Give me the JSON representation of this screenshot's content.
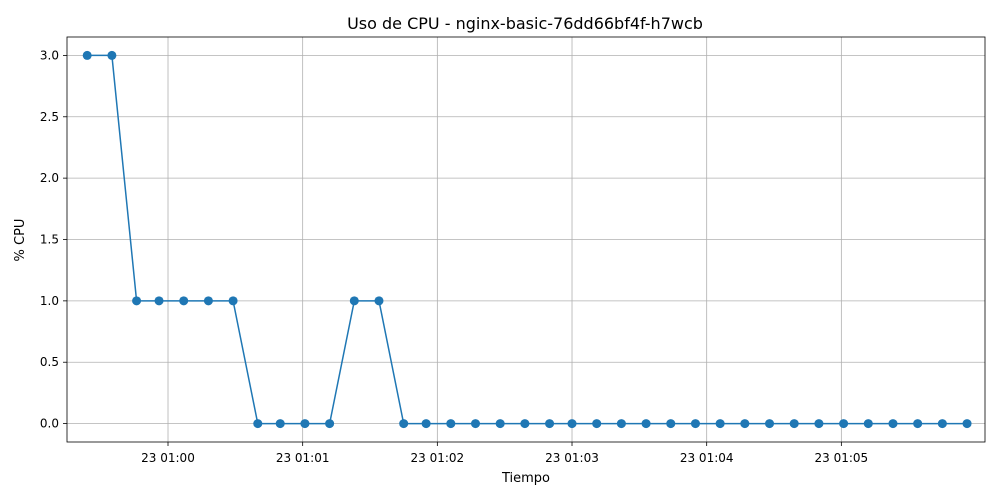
{
  "chart_data": {
    "type": "line",
    "title": "Uso de CPU - nginx-basic-76dd66bf4f-h7wcb",
    "xlabel": "Tiempo",
    "ylabel": "% CPU",
    "grid": true,
    "x_tick_labels": [
      "23 01:00",
      "23 01:01",
      "23 01:02",
      "23 01:03",
      "23 01:04",
      "23 01:05"
    ],
    "x_ticks": [
      "01:00:00",
      "01:01:00",
      "01:02:00",
      "01:03:00",
      "01:04:00",
      "01:05:00"
    ],
    "xlim": [
      "00:59:15",
      "01:06:04"
    ],
    "y_ticks": [
      "0.0",
      "0.5",
      "1.0",
      "1.5",
      "2.0",
      "2.5",
      "3.0"
    ],
    "ylim": [
      -0.15,
      3.15
    ],
    "series": [
      {
        "color": "#1f77b4",
        "x": [
          "00:59:24",
          "00:59:35",
          "00:59:46",
          "00:59:56",
          "01:00:07",
          "01:00:18",
          "01:00:29",
          "01:00:40",
          "01:00:50",
          "01:01:01",
          "01:01:12",
          "01:01:23",
          "01:01:34",
          "01:01:45",
          "01:01:55",
          "01:02:06",
          "01:02:17",
          "01:02:28",
          "01:02:39",
          "01:02:50",
          "01:03:00",
          "01:03:11",
          "01:03:22",
          "01:03:33",
          "01:03:44",
          "01:03:55",
          "01:04:06",
          "01:04:17",
          "01:04:28",
          "01:04:39",
          "01:04:50",
          "01:05:01",
          "01:05:12",
          "01:05:23",
          "01:05:34",
          "01:05:45",
          "01:05:56"
        ],
        "y": [
          3,
          3,
          1,
          1,
          1,
          1,
          1,
          0,
          0,
          0,
          0,
          1,
          1,
          0,
          0,
          0,
          0,
          0,
          0,
          0,
          0,
          0,
          0,
          0,
          0,
          0,
          0,
          0,
          0,
          0,
          0,
          0,
          0,
          0,
          0,
          0,
          0
        ]
      }
    ]
  }
}
